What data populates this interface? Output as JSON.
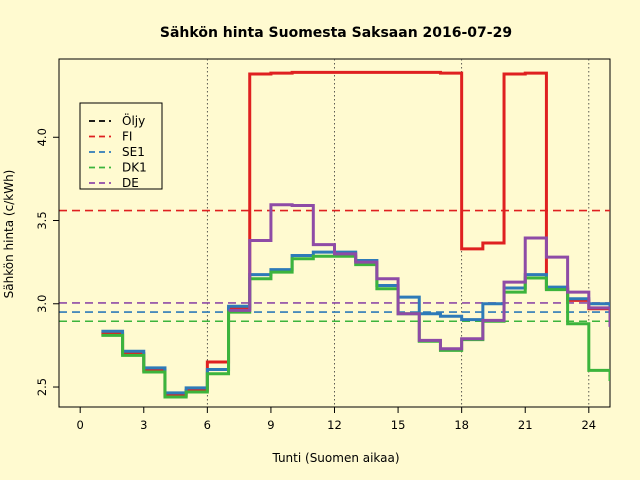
{
  "chart_data": {
    "type": "line",
    "title": "Sähkön hinta Suomesta Saksaan 2016-07-29",
    "xlabel": "Tunti (Suomen aikaa)",
    "ylabel": "Sähkön hinta (c/kWh)",
    "xlim": [
      -1,
      25
    ],
    "ylim": [
      2.38,
      4.47
    ],
    "x_ticks": [
      0,
      3,
      6,
      9,
      12,
      15,
      18,
      21,
      24
    ],
    "y_ticks": [
      2.5,
      3.0,
      3.5,
      4.0
    ],
    "y_tick_labels": [
      "2.5",
      "3.0",
      "3.5",
      "4.0"
    ],
    "vertical_gridlines": [
      6,
      12,
      18,
      24
    ],
    "step_style": "right-step (hour h to h+1)",
    "legend_position": "top-left",
    "series": [
      {
        "name": "Öljy",
        "color": "#000000",
        "style": "step",
        "values": [
          2.83,
          2.71,
          2.61,
          2.46,
          2.49,
          2.6,
          2.97,
          3.17,
          3.2,
          3.28,
          3.3,
          3.3,
          3.25,
          3.1,
          3.03,
          2.93,
          2.92,
          2.9,
          3.0,
          3.09,
          3.17,
          3.09,
          3.02,
          2.98,
          2.89
        ]
      },
      {
        "name": "FI",
        "color": "#df2020",
        "style": "step",
        "values": [
          2.82,
          2.7,
          2.6,
          2.45,
          2.48,
          2.65,
          2.97,
          4.38,
          4.385,
          4.39,
          4.39,
          4.39,
          4.39,
          4.39,
          4.39,
          4.39,
          4.385,
          3.33,
          3.365,
          4.38,
          4.385,
          3.09,
          3.02,
          2.97,
          2.88
        ]
      },
      {
        "name": "SE1",
        "color": "#2e7ab8",
        "style": "step",
        "values": [
          2.835,
          2.715,
          2.615,
          2.465,
          2.495,
          2.605,
          2.985,
          3.175,
          3.205,
          3.29,
          3.31,
          3.31,
          3.26,
          3.11,
          3.04,
          2.94,
          2.925,
          2.905,
          3.0,
          3.095,
          3.175,
          3.1,
          3.03,
          3.0,
          2.9
        ]
      },
      {
        "name": "DK1",
        "color": "#3cb43c",
        "style": "step",
        "values": [
          2.81,
          2.69,
          2.59,
          2.44,
          2.47,
          2.58,
          2.95,
          3.15,
          3.19,
          3.27,
          3.285,
          3.285,
          3.235,
          3.09,
          2.94,
          2.775,
          2.72,
          2.785,
          2.895,
          3.07,
          3.155,
          3.085,
          2.88,
          2.6,
          2.545
        ]
      },
      {
        "name": "DE",
        "color": "#8e4ba6",
        "style": "step",
        "values": [
          null,
          null,
          null,
          null,
          null,
          null,
          2.96,
          3.38,
          3.595,
          3.59,
          3.355,
          3.3,
          3.25,
          3.15,
          2.94,
          2.78,
          2.73,
          2.79,
          2.9,
          3.13,
          3.395,
          3.28,
          3.07,
          2.975,
          2.87
        ]
      }
    ],
    "reference_lines": [
      {
        "series": "FI",
        "y": 3.56,
        "color": "#df2020"
      },
      {
        "series": "SE1",
        "y": 2.95,
        "color": "#2e7ab8"
      },
      {
        "series": "DK1",
        "y": 2.895,
        "color": "#3cb43c"
      },
      {
        "series": "DE",
        "y": 3.005,
        "color": "#8e4ba6"
      }
    ]
  }
}
